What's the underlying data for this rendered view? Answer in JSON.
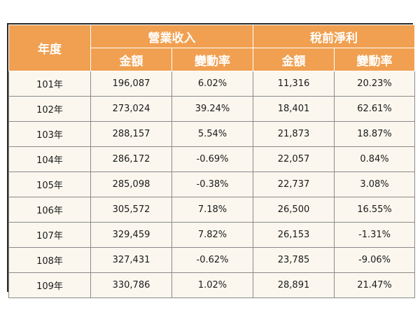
{
  "table": {
    "year_header": "年度",
    "revenue_header": "營業收入",
    "net_profit_header": "稅前淨利",
    "amount_label": "金額",
    "change_label": "變動率",
    "rows": [
      {
        "year": "101年",
        "revenue": "196,087",
        "revenue_change": "6.02%",
        "net_profit": "11,316",
        "net_profit_change": "20.23%"
      },
      {
        "year": "102年",
        "revenue": "273,024",
        "revenue_change": "39.24%",
        "net_profit": "18,401",
        "net_profit_change": "62.61%"
      },
      {
        "year": "103年",
        "revenue": "288,157",
        "revenue_change": "5.54%",
        "net_profit": "21,873",
        "net_profit_change": "18.87%"
      },
      {
        "year": "104年",
        "revenue": "286,172",
        "revenue_change": "-0.69%",
        "net_profit": "22,057",
        "net_profit_change": "0.84%"
      },
      {
        "year": "105年",
        "revenue": "285,098",
        "revenue_change": "-0.38%",
        "net_profit": "22,737",
        "net_profit_change": "3.08%"
      },
      {
        "year": "106年",
        "revenue": "305,572",
        "revenue_change": "7.18%",
        "net_profit": "26,500",
        "net_profit_change": "16.55%"
      },
      {
        "year": "107年",
        "revenue": "329,459",
        "revenue_change": "7.82%",
        "net_profit": "26,153",
        "net_profit_change": "-1.31%"
      },
      {
        "year": "108年",
        "revenue": "327,431",
        "revenue_change": "-0.62%",
        "net_profit": "23,785",
        "net_profit_change": "-9.06%"
      },
      {
        "year": "109年",
        "revenue": "330,786",
        "revenue_change": "1.02%",
        "net_profit": "28,891",
        "net_profit_change": "21.47%"
      }
    ]
  },
  "colors": {
    "header_bg": "#f0a050",
    "header_text": "#ffffff",
    "cell_bg": "#fbf7ee",
    "border": "#2a2a2a"
  }
}
